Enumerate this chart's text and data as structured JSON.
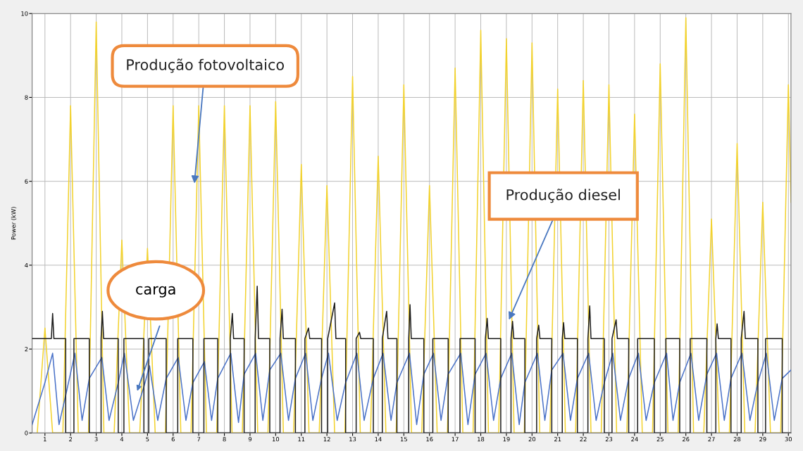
{
  "chart_data": {
    "type": "line",
    "ylabel": "Power (kW)",
    "xlim": [
      0.5,
      30.1
    ],
    "ylim": [
      0,
      10
    ],
    "xticks": [
      1,
      2,
      3,
      4,
      5,
      6,
      7,
      8,
      9,
      10,
      11,
      12,
      13,
      14,
      15,
      16,
      17,
      18,
      19,
      20,
      21,
      22,
      23,
      24,
      25,
      26,
      27,
      28,
      29,
      30
    ],
    "yticks": [
      0,
      2,
      4,
      6,
      8,
      10
    ],
    "grid": true,
    "line_style": "solid",
    "marker": "none",
    "series": [
      {
        "color": "#f2d22e",
        "x": [
          0.7,
          1,
          1.3,
          1.7,
          2,
          2.3,
          2.7,
          3,
          3.3,
          3.7,
          4,
          4.3,
          4.7,
          5,
          5.3,
          5.7,
          6,
          6.3,
          6.7,
          7,
          7.3,
          7.7,
          8,
          8.3,
          8.7,
          9,
          9.3,
          9.7,
          10,
          10.3,
          10.7,
          11,
          11.3,
          11.7,
          12,
          12.3,
          12.7,
          13,
          13.3,
          13.7,
          14,
          14.3,
          14.7,
          15,
          15.3,
          15.7,
          16,
          16.3,
          16.7,
          17,
          17.3,
          17.7,
          18,
          18.3,
          18.7,
          19,
          19.3,
          19.7,
          20,
          20.3,
          20.7,
          21,
          21.3,
          21.7,
          22,
          22.3,
          22.7,
          23,
          23.3,
          23.7,
          24,
          24.3,
          24.7,
          25,
          25.3,
          25.7,
          26,
          26.3,
          26.7,
          27,
          27.3,
          27.7,
          28,
          28.3,
          28.7,
          29,
          29.3,
          29.7,
          30,
          30.1
        ],
        "values": [
          0,
          2.5,
          0,
          0,
          7.8,
          0,
          0,
          9.8,
          0,
          0,
          4.6,
          0,
          0,
          4.4,
          0,
          0,
          7.8,
          0,
          0,
          7.8,
          0,
          0,
          7.8,
          0,
          0,
          7.8,
          0,
          0,
          7.9,
          0,
          0,
          6.4,
          0,
          0,
          5.9,
          0,
          0,
          8.5,
          0,
          0,
          6.6,
          0,
          0,
          8.3,
          0,
          0,
          5.9,
          0,
          0,
          8.7,
          0,
          0,
          9.6,
          0,
          0,
          9.4,
          0,
          0,
          9.3,
          0,
          0,
          8.2,
          0,
          0,
          8.4,
          0,
          0,
          8.3,
          0,
          0,
          7.6,
          0,
          0,
          8.8,
          0,
          0,
          9.9,
          0,
          0,
          5.1,
          0,
          0,
          6.9,
          0,
          0,
          5.5,
          0,
          0,
          8.3,
          5.5
        ]
      },
      {
        "color": "#4a72c8",
        "x": [
          0.5,
          1.0,
          1.3,
          1.55,
          1.81,
          2.17,
          2.45,
          2.73,
          3.22,
          3.5,
          3.86,
          4.1,
          4.45,
          4.86,
          5.08,
          5.4,
          5.73,
          6.2,
          6.5,
          6.77,
          7.22,
          7.5,
          7.74,
          8.25,
          8.55,
          8.77,
          9.22,
          9.5,
          9.77,
          10.2,
          10.5,
          10.77,
          11.17,
          11.45,
          11.79,
          12.06,
          12.4,
          12.73,
          13.17,
          13.45,
          13.81,
          14.19,
          14.5,
          14.73,
          15.22,
          15.5,
          15.78,
          16.16,
          16.45,
          16.73,
          17.22,
          17.5,
          17.78,
          18.21,
          18.5,
          18.78,
          19.21,
          19.5,
          19.72,
          20.21,
          20.5,
          20.77,
          21.21,
          21.5,
          21.77,
          22.21,
          22.5,
          22.82,
          23.15,
          23.45,
          23.77,
          24.15,
          24.45,
          24.77,
          25.25,
          25.5,
          25.76,
          26.2,
          26.5,
          26.82,
          27.2,
          27.5,
          27.76,
          28.19,
          28.5,
          28.81,
          29.14,
          29.45,
          29.76,
          30.1
        ],
        "values": [
          0.2,
          1.2,
          1.9,
          0.2,
          0.9,
          1.9,
          0.3,
          1.3,
          1.8,
          0.3,
          1.2,
          1.9,
          0.3,
          1.1,
          1.6,
          0.3,
          1.3,
          1.8,
          0.3,
          1.2,
          1.7,
          0.3,
          1.3,
          1.9,
          0.25,
          1.4,
          1.9,
          0.3,
          1.5,
          1.9,
          0.3,
          1.3,
          1.9,
          0.3,
          1.3,
          1.9,
          0.3,
          1.2,
          1.9,
          0.3,
          1.3,
          1.9,
          0.3,
          1.2,
          1.9,
          0.2,
          1.4,
          1.9,
          0.3,
          1.4,
          1.9,
          0.2,
          1.4,
          1.9,
          0.3,
          1.3,
          1.9,
          0.2,
          1.2,
          1.9,
          0.3,
          1.5,
          1.9,
          0.3,
          1.3,
          1.9,
          0.3,
          1.2,
          1.9,
          0.3,
          1.3,
          1.9,
          0.3,
          1.2,
          1.9,
          0.3,
          1.2,
          1.9,
          0.3,
          1.4,
          1.9,
          0.3,
          1.3,
          1.9,
          0.3,
          1.2,
          1.9,
          0.3,
          1.3,
          1.5
        ]
      },
      {
        "color": "#1e1e1e",
        "x": [
          0.5,
          1.25,
          1.3,
          1.35,
          1.81,
          1.81,
          2.13,
          2.13,
          2.73,
          2.73,
          3.19,
          3.19,
          3.24,
          3.29,
          3.86,
          3.86,
          4.08,
          4.08,
          4.86,
          4.86,
          5.05,
          5.05,
          5.73,
          5.73,
          6.18,
          6.18,
          6.77,
          6.77,
          7.2,
          7.2,
          7.74,
          7.74,
          8.23,
          8.23,
          8.31,
          8.36,
          8.77,
          8.77,
          9.2,
          9.2,
          9.28,
          9.33,
          9.77,
          9.77,
          10.17,
          10.17,
          10.25,
          10.3,
          10.77,
          10.77,
          11.14,
          11.14,
          11.28,
          11.33,
          11.79,
          11.79,
          12.03,
          12.03,
          12.3,
          12.35,
          12.73,
          12.73,
          13.14,
          13.14,
          13.27,
          13.32,
          13.81,
          13.81,
          14.16,
          14.16,
          14.33,
          14.38,
          14.73,
          14.73,
          15.19,
          15.19,
          15.24,
          15.29,
          15.78,
          15.78,
          16.13,
          16.13,
          16.73,
          16.73,
          17.19,
          17.19,
          17.78,
          17.78,
          18.18,
          18.18,
          18.25,
          18.3,
          18.78,
          18.78,
          19.18,
          19.18,
          19.24,
          19.29,
          19.72,
          19.72,
          20.18,
          20.18,
          20.26,
          20.31,
          20.77,
          20.77,
          21.18,
          21.18,
          21.23,
          21.28,
          21.77,
          21.77,
          22.18,
          22.18,
          22.25,
          22.3,
          22.82,
          22.82,
          23.12,
          23.12,
          23.28,
          23.33,
          23.77,
          23.77,
          24.12,
          24.12,
          24.77,
          24.77,
          25.22,
          25.22,
          25.76,
          25.76,
          26.17,
          26.17,
          26.82,
          26.82,
          27.17,
          27.17,
          27.22,
          27.27,
          27.76,
          27.76,
          28.16,
          28.16,
          28.27,
          28.32,
          28.81,
          28.81,
          29.11,
          29.11,
          29.76,
          29.76,
          30.1
        ],
        "values": [
          2.25,
          2.25,
          2.85,
          2.25,
          2.25,
          0,
          0,
          2.25,
          2.25,
          0,
          0,
          2.25,
          2.9,
          2.25,
          2.25,
          0,
          0,
          2.25,
          2.25,
          0,
          0,
          2.25,
          2.25,
          0,
          0,
          2.25,
          2.25,
          0,
          0,
          2.25,
          2.25,
          0,
          0,
          2.25,
          2.85,
          2.25,
          2.25,
          0,
          0,
          2.25,
          3.5,
          2.25,
          2.25,
          0,
          0,
          2.25,
          2.95,
          2.25,
          2.25,
          0,
          0,
          2.25,
          2.5,
          2.25,
          2.25,
          0,
          0,
          2.25,
          3.1,
          2.25,
          2.25,
          0,
          0,
          2.25,
          2.4,
          2.25,
          2.25,
          0,
          0,
          2.25,
          2.9,
          2.25,
          2.25,
          0,
          0,
          2.25,
          3.06,
          2.25,
          2.25,
          0,
          0,
          2.25,
          2.25,
          0,
          0,
          2.25,
          2.25,
          0,
          0,
          2.25,
          2.73,
          2.25,
          2.25,
          0,
          0,
          2.25,
          2.66,
          2.25,
          2.25,
          0,
          0,
          2.25,
          2.57,
          2.25,
          2.25,
          0,
          0,
          2.25,
          2.63,
          2.25,
          2.25,
          0,
          0,
          2.25,
          3.03,
          2.25,
          2.25,
          0,
          0,
          2.25,
          2.7,
          2.25,
          2.25,
          0,
          0,
          2.25,
          2.25,
          0,
          0,
          2.25,
          2.25,
          0,
          0,
          2.25,
          2.25,
          0,
          0,
          2.25,
          2.6,
          2.25,
          2.25,
          0,
          0,
          2.25,
          2.9,
          2.25,
          2.25,
          0,
          0,
          2.25,
          2.25,
          0,
          0
        ]
      }
    ],
    "annotations": [
      {
        "text": "Produção fotovoltaico",
        "x": 6.83,
        "y": 5.95
      },
      {
        "text": "Produção diesel",
        "x": 19.1,
        "y": 2.7
      },
      "carga"
    ]
  }
}
